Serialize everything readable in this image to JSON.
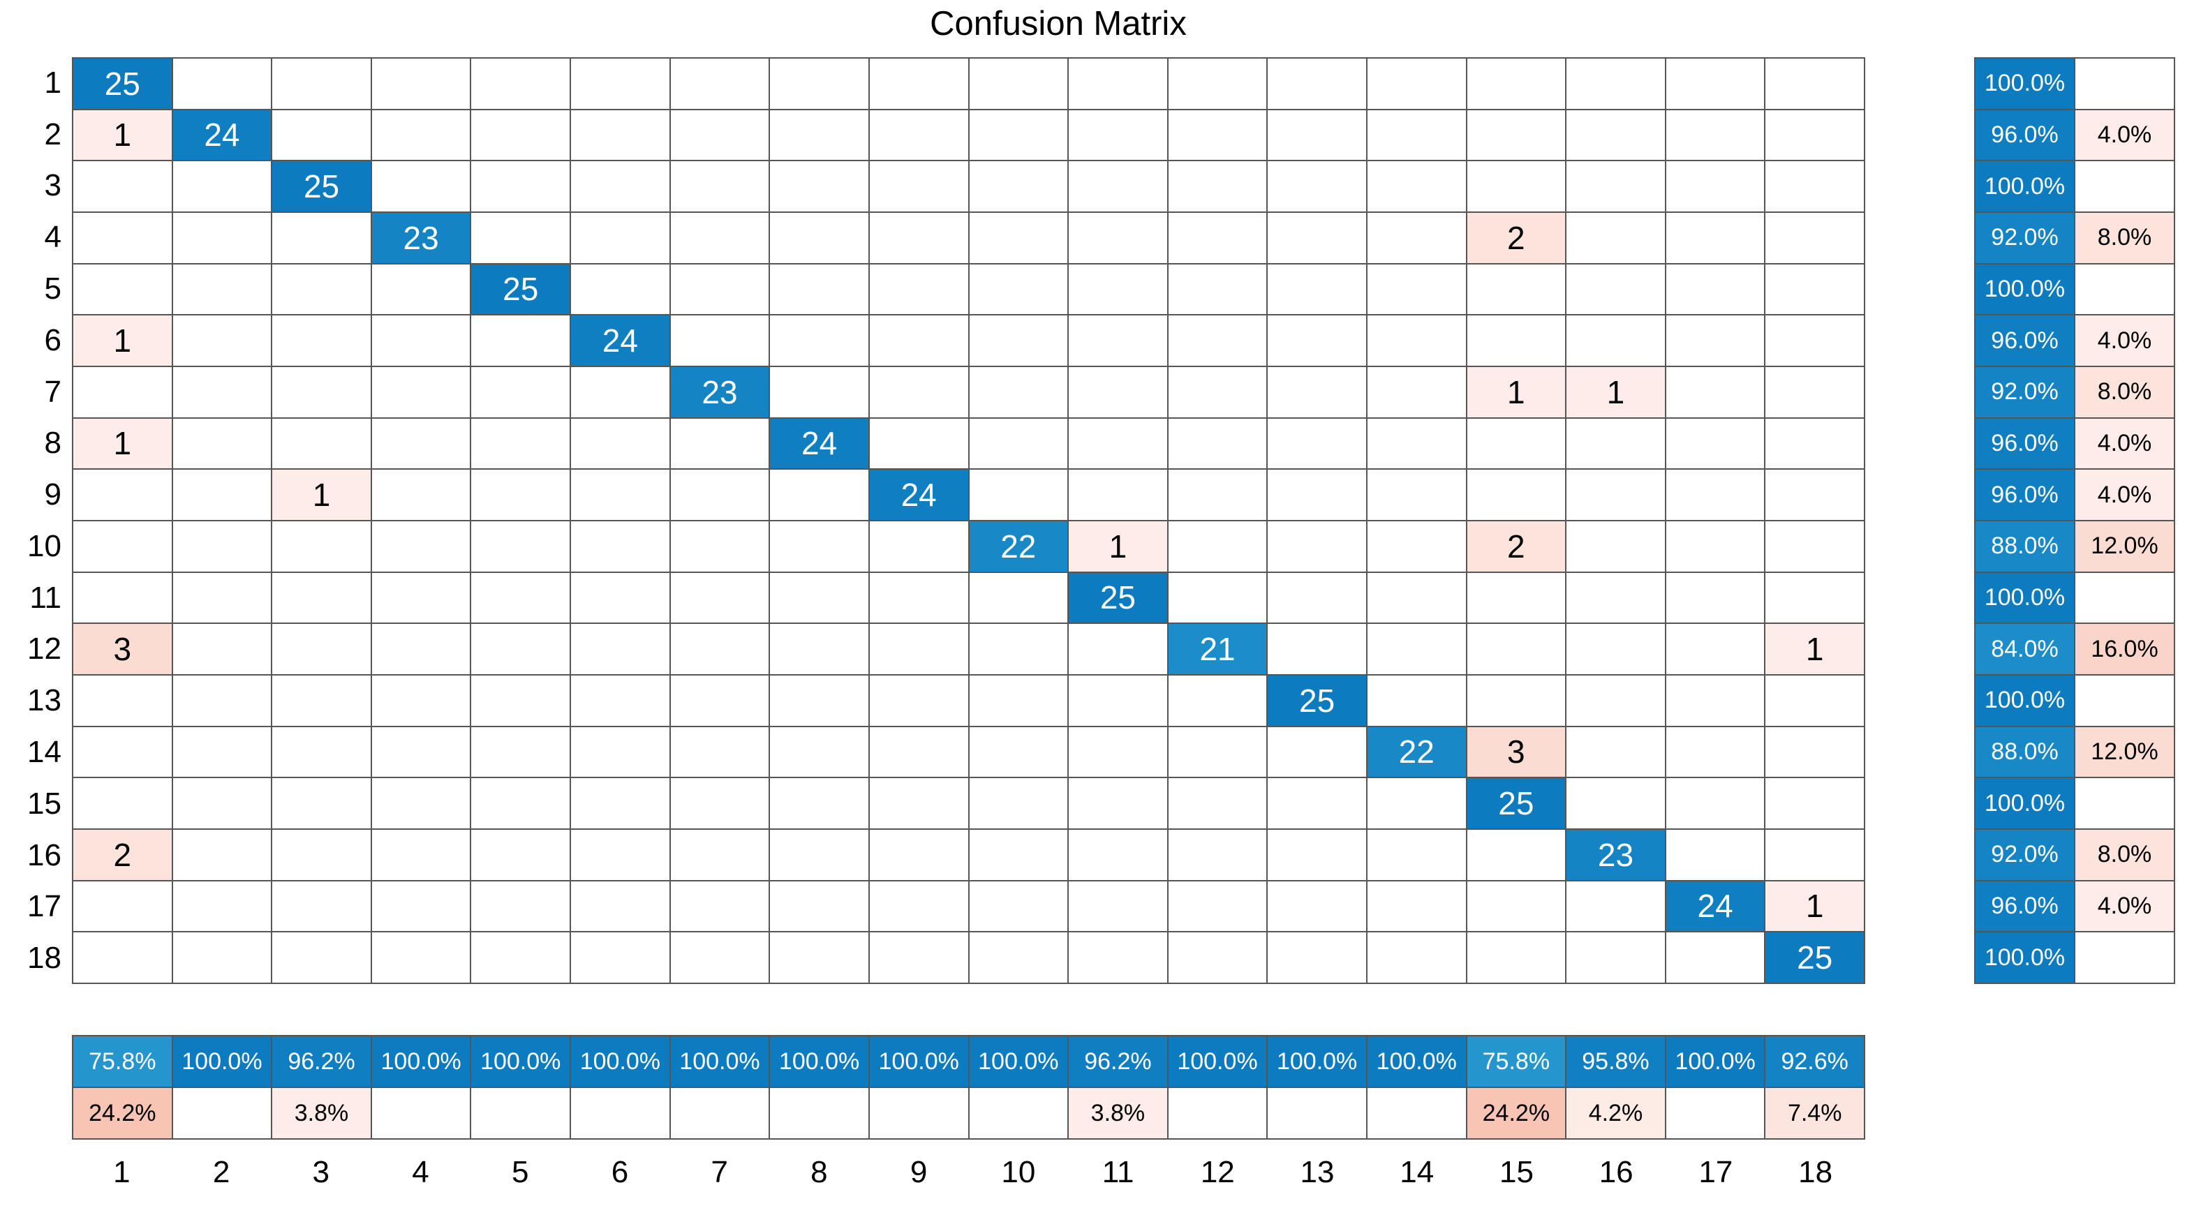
{
  "chart_data": {
    "type": "heatmap",
    "title": "Confusion Matrix",
    "xlabel": "",
    "ylabel": "",
    "classes": [
      "1",
      "2",
      "3",
      "4",
      "5",
      "6",
      "7",
      "8",
      "9",
      "10",
      "11",
      "12",
      "13",
      "14",
      "15",
      "16",
      "17",
      "18"
    ],
    "matrix": [
      [
        25,
        0,
        0,
        0,
        0,
        0,
        0,
        0,
        0,
        0,
        0,
        0,
        0,
        0,
        0,
        0,
        0,
        0
      ],
      [
        1,
        24,
        0,
        0,
        0,
        0,
        0,
        0,
        0,
        0,
        0,
        0,
        0,
        0,
        0,
        0,
        0,
        0
      ],
      [
        0,
        0,
        25,
        0,
        0,
        0,
        0,
        0,
        0,
        0,
        0,
        0,
        0,
        0,
        0,
        0,
        0,
        0
      ],
      [
        0,
        0,
        0,
        23,
        0,
        0,
        0,
        0,
        0,
        0,
        0,
        0,
        0,
        0,
        2,
        0,
        0,
        0
      ],
      [
        0,
        0,
        0,
        0,
        25,
        0,
        0,
        0,
        0,
        0,
        0,
        0,
        0,
        0,
        0,
        0,
        0,
        0
      ],
      [
        1,
        0,
        0,
        0,
        0,
        24,
        0,
        0,
        0,
        0,
        0,
        0,
        0,
        0,
        0,
        0,
        0,
        0
      ],
      [
        0,
        0,
        0,
        0,
        0,
        0,
        23,
        0,
        0,
        0,
        0,
        0,
        0,
        0,
        1,
        1,
        0,
        0
      ],
      [
        1,
        0,
        0,
        0,
        0,
        0,
        0,
        24,
        0,
        0,
        0,
        0,
        0,
        0,
        0,
        0,
        0,
        0
      ],
      [
        0,
        0,
        1,
        0,
        0,
        0,
        0,
        0,
        24,
        0,
        0,
        0,
        0,
        0,
        0,
        0,
        0,
        0
      ],
      [
        0,
        0,
        0,
        0,
        0,
        0,
        0,
        0,
        0,
        22,
        1,
        0,
        0,
        0,
        2,
        0,
        0,
        0
      ],
      [
        0,
        0,
        0,
        0,
        0,
        0,
        0,
        0,
        0,
        0,
        25,
        0,
        0,
        0,
        0,
        0,
        0,
        0
      ],
      [
        3,
        0,
        0,
        0,
        0,
        0,
        0,
        0,
        0,
        0,
        0,
        21,
        0,
        0,
        0,
        0,
        0,
        1
      ],
      [
        0,
        0,
        0,
        0,
        0,
        0,
        0,
        0,
        0,
        0,
        0,
        0,
        25,
        0,
        0,
        0,
        0,
        0
      ],
      [
        0,
        0,
        0,
        0,
        0,
        0,
        0,
        0,
        0,
        0,
        0,
        0,
        0,
        22,
        3,
        0,
        0,
        0
      ],
      [
        0,
        0,
        0,
        0,
        0,
        0,
        0,
        0,
        0,
        0,
        0,
        0,
        0,
        0,
        25,
        0,
        0,
        0
      ],
      [
        2,
        0,
        0,
        0,
        0,
        0,
        0,
        0,
        0,
        0,
        0,
        0,
        0,
        0,
        0,
        23,
        0,
        0
      ],
      [
        0,
        0,
        0,
        0,
        0,
        0,
        0,
        0,
        0,
        0,
        0,
        0,
        0,
        0,
        0,
        0,
        24,
        1
      ],
      [
        0,
        0,
        0,
        0,
        0,
        0,
        0,
        0,
        0,
        0,
        0,
        0,
        0,
        0,
        0,
        0,
        0,
        25
      ]
    ],
    "row_summary": [
      [
        "100.0%",
        ""
      ],
      [
        "96.0%",
        "4.0%"
      ],
      [
        "100.0%",
        ""
      ],
      [
        "92.0%",
        "8.0%"
      ],
      [
        "100.0%",
        ""
      ],
      [
        "96.0%",
        "4.0%"
      ],
      [
        "92.0%",
        "8.0%"
      ],
      [
        "96.0%",
        "4.0%"
      ],
      [
        "96.0%",
        "4.0%"
      ],
      [
        "88.0%",
        "12.0%"
      ],
      [
        "100.0%",
        ""
      ],
      [
        "84.0%",
        "16.0%"
      ],
      [
        "100.0%",
        ""
      ],
      [
        "88.0%",
        "12.0%"
      ],
      [
        "100.0%",
        ""
      ],
      [
        "92.0%",
        "8.0%"
      ],
      [
        "96.0%",
        "4.0%"
      ],
      [
        "100.0%",
        ""
      ]
    ],
    "col_summary": [
      [
        "75.8%",
        "24.2%"
      ],
      [
        "100.0%",
        ""
      ],
      [
        "96.2%",
        "3.8%"
      ],
      [
        "100.0%",
        ""
      ],
      [
        "100.0%",
        ""
      ],
      [
        "100.0%",
        ""
      ],
      [
        "100.0%",
        ""
      ],
      [
        "100.0%",
        ""
      ],
      [
        "100.0%",
        ""
      ],
      [
        "100.0%",
        ""
      ],
      [
        "96.2%",
        "3.8%"
      ],
      [
        "100.0%",
        ""
      ],
      [
        "100.0%",
        ""
      ],
      [
        "100.0%",
        ""
      ],
      [
        "75.8%",
        "24.2%"
      ],
      [
        "95.8%",
        "4.2%"
      ],
      [
        "100.0%",
        ""
      ],
      [
        "92.6%",
        "7.4%"
      ]
    ],
    "grid": true,
    "legend_position": "none",
    "colors": {
      "diag_blue_dark": "#0c7bc0",
      "diag_blue_light": "#2596cd",
      "offdiag_pink_light": "#fdece7",
      "offdiag_pink_dark": "#f8c4b4",
      "grid_line": "#555555",
      "text_on_blue": "#ffffff",
      "text_on_light": "#000000",
      "background": "#ffffff"
    }
  }
}
